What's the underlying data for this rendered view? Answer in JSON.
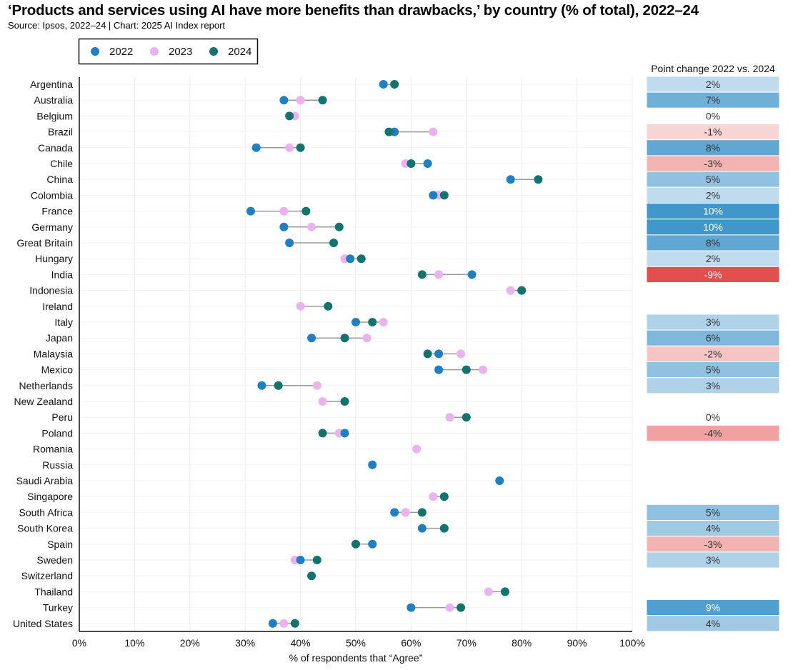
{
  "header": {
    "title": "‘Products and services using AI have more benefits than drawbacks,’ by country (% of total), 2022–24",
    "subtitle": "Source: Ipsos, 2022–24 | Chart: 2025 AI Index report"
  },
  "chart_data": {
    "type": "dot",
    "xlabel": "% of respondents that “Agree”",
    "xlim": [
      0,
      100
    ],
    "xticks": [
      "0%",
      "10%",
      "20%",
      "30%",
      "40%",
      "50%",
      "60%",
      "70%",
      "80%",
      "90%",
      "100%"
    ],
    "legend": {
      "placement": "top-left",
      "entries": [
        {
          "name": "2022",
          "color": "#1f7fc0"
        },
        {
          "name": "2023",
          "color": "#eab3f0"
        },
        {
          "name": "2024",
          "color": "#13736f"
        }
      ]
    },
    "point_change_header": "Point change 2022 vs. 2024",
    "countries": [
      {
        "name": "Argentina",
        "v2022": 55,
        "v2023": null,
        "v2024": 57,
        "change": "2%"
      },
      {
        "name": "Australia",
        "v2022": 37,
        "v2023": 40,
        "v2024": 44,
        "change": "7%"
      },
      {
        "name": "Belgium",
        "v2022": null,
        "v2023": 39,
        "v2024": 38,
        "change": "0%"
      },
      {
        "name": "Brazil",
        "v2022": 57,
        "v2023": 64,
        "v2024": 56,
        "change": "-1%"
      },
      {
        "name": "Canada",
        "v2022": 32,
        "v2023": 38,
        "v2024": 40,
        "change": "8%"
      },
      {
        "name": "Chile",
        "v2022": 63,
        "v2023": 59,
        "v2024": 60,
        "change": "-3%"
      },
      {
        "name": "China",
        "v2022": 78,
        "v2023": null,
        "v2024": 83,
        "change": "5%"
      },
      {
        "name": "Colombia",
        "v2022": 64,
        "v2023": 65,
        "v2024": 66,
        "change": "2%"
      },
      {
        "name": "France",
        "v2022": 31,
        "v2023": 37,
        "v2024": 41,
        "change": "10%"
      },
      {
        "name": "Germany",
        "v2022": 37,
        "v2023": 42,
        "v2024": 47,
        "change": "10%"
      },
      {
        "name": "Great Britain",
        "v2022": 38,
        "v2023": null,
        "v2024": 46,
        "change": "8%"
      },
      {
        "name": "Hungary",
        "v2022": 49,
        "v2023": 48,
        "v2024": 51,
        "change": "2%"
      },
      {
        "name": "India",
        "v2022": 71,
        "v2023": 65,
        "v2024": 62,
        "change": "-9%"
      },
      {
        "name": "Indonesia",
        "v2022": null,
        "v2023": 78,
        "v2024": 80,
        "change": null
      },
      {
        "name": "Ireland",
        "v2022": null,
        "v2023": 40,
        "v2024": 45,
        "change": null
      },
      {
        "name": "Italy",
        "v2022": 50,
        "v2023": 55,
        "v2024": 53,
        "change": "3%"
      },
      {
        "name": "Japan",
        "v2022": 42,
        "v2023": 52,
        "v2024": 48,
        "change": "6%"
      },
      {
        "name": "Malaysia",
        "v2022": 65,
        "v2023": 69,
        "v2024": 63,
        "change": "-2%"
      },
      {
        "name": "Mexico",
        "v2022": 65,
        "v2023": 73,
        "v2024": 70,
        "change": "5%"
      },
      {
        "name": "Netherlands",
        "v2022": 33,
        "v2023": 43,
        "v2024": 36,
        "change": "3%"
      },
      {
        "name": "New Zealand",
        "v2022": null,
        "v2023": 44,
        "v2024": 48,
        "change": null
      },
      {
        "name": "Peru",
        "v2022": null,
        "v2023": 67,
        "v2024": 70,
        "change": "0%"
      },
      {
        "name": "Poland",
        "v2022": 48,
        "v2023": 47,
        "v2024": 44,
        "change": "-4%"
      },
      {
        "name": "Romania",
        "v2022": null,
        "v2023": 61,
        "v2024": null,
        "change": null
      },
      {
        "name": "Russia",
        "v2022": 53,
        "v2023": null,
        "v2024": null,
        "change": null
      },
      {
        "name": "Saudi Arabia",
        "v2022": 76,
        "v2023": null,
        "v2024": null,
        "change": null
      },
      {
        "name": "Singapore",
        "v2022": null,
        "v2023": 64,
        "v2024": 66,
        "change": null
      },
      {
        "name": "South Africa",
        "v2022": 57,
        "v2023": 59,
        "v2024": 62,
        "change": "5%"
      },
      {
        "name": "South Korea",
        "v2022": 62,
        "v2023": null,
        "v2024": 66,
        "change": "4%"
      },
      {
        "name": "Spain",
        "v2022": 53,
        "v2023": null,
        "v2024": 50,
        "change": "-3%"
      },
      {
        "name": "Sweden",
        "v2022": 40,
        "v2023": 39,
        "v2024": 43,
        "change": "3%"
      },
      {
        "name": "Switzerland",
        "v2022": null,
        "v2023": null,
        "v2024": 42,
        "change": null
      },
      {
        "name": "Thailand",
        "v2022": null,
        "v2023": 74,
        "v2024": 77,
        "change": null
      },
      {
        "name": "Turkey",
        "v2022": 60,
        "v2023": 67,
        "v2024": 69,
        "change": "9%"
      },
      {
        "name": "United States",
        "v2022": 35,
        "v2023": 37,
        "v2024": 39,
        "change": "4%"
      }
    ]
  }
}
